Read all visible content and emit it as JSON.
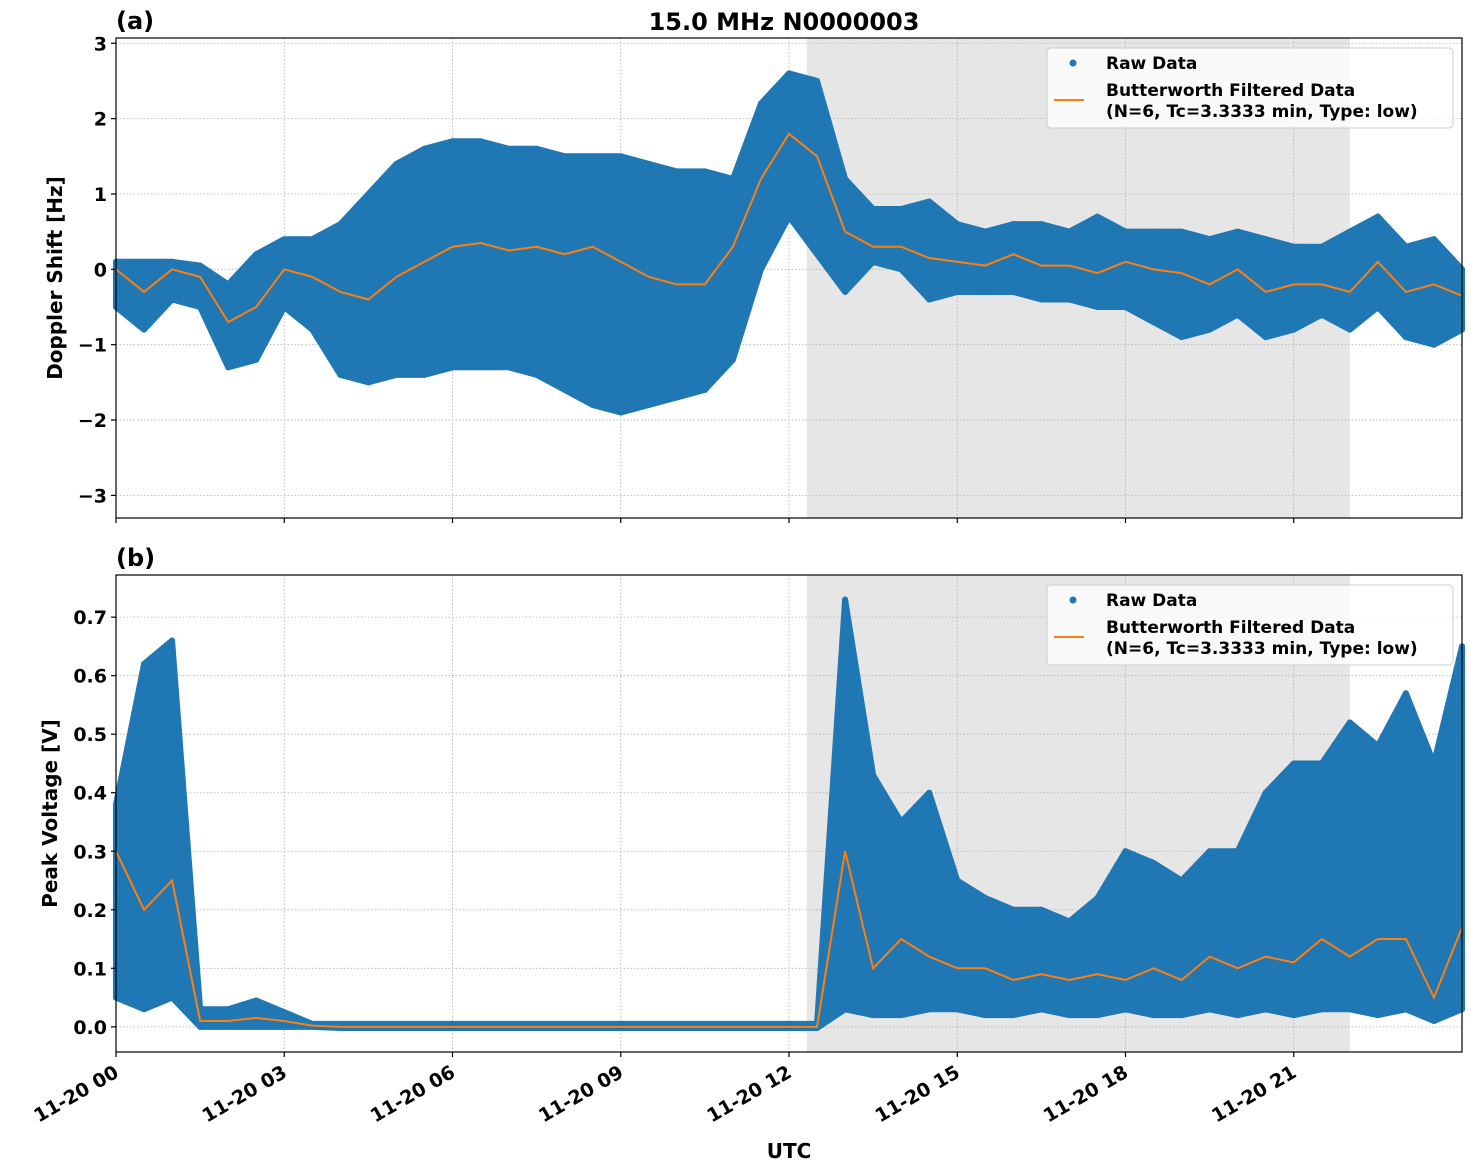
{
  "figure": {
    "title": "15.0 MHz N0000003",
    "xlabel": "UTC",
    "colors": {
      "raw": "#1f77b4",
      "filtered": "#ff7f0e",
      "shade": "#e6e6e6",
      "grid": "#b0b0b0"
    }
  },
  "chart_data": [
    {
      "panel_label": "(a)",
      "type": "scatter+line",
      "ylabel": "Doppler Shift [Hz]",
      "ylim": [
        -3.3,
        3.07
      ],
      "yticks": [
        -3,
        -2,
        -1,
        0,
        1,
        2,
        3
      ],
      "ytick_labels": [
        "−3",
        "−2",
        "−1",
        "0",
        "1",
        "2",
        "3"
      ],
      "xlim": [
        "11-20 00:00",
        "11-21 00:00"
      ],
      "xticks": [
        "11-20 00",
        "11-20 03",
        "11-20 06",
        "11-20 09",
        "11-20 12",
        "11-20 15",
        "11-20 18",
        "11-20 21"
      ],
      "xtick_labels_shown": false,
      "grid": true,
      "shaded_span": [
        "11-20 12:19",
        "11-20 22:00"
      ],
      "legend": {
        "placement": "top-right",
        "entries": [
          "Raw Data",
          "Butterworth Filtered Data",
          "(N=6, Tc=3.3333 min, Type: low)"
        ]
      },
      "x": [
        "11-20 00:00",
        "11-20 00:30",
        "11-20 01:00",
        "11-20 01:30",
        "11-20 02:00",
        "11-20 02:30",
        "11-20 03:00",
        "11-20 03:30",
        "11-20 04:00",
        "11-20 04:30",
        "11-20 05:00",
        "11-20 05:30",
        "11-20 06:00",
        "11-20 06:30",
        "11-20 07:00",
        "11-20 07:30",
        "11-20 08:00",
        "11-20 08:30",
        "11-20 09:00",
        "11-20 09:30",
        "11-20 10:00",
        "11-20 10:30",
        "11-20 11:00",
        "11-20 11:30",
        "11-20 12:00",
        "11-20 12:30",
        "11-20 13:00",
        "11-20 13:30",
        "11-20 14:00",
        "11-20 14:30",
        "11-20 15:00",
        "11-20 15:30",
        "11-20 16:00",
        "11-20 16:30",
        "11-20 17:00",
        "11-20 17:30",
        "11-20 18:00",
        "11-20 18:30",
        "11-20 19:00",
        "11-20 19:30",
        "11-20 20:00",
        "11-20 20:30",
        "11-20 21:00",
        "11-20 21:30",
        "11-20 22:00",
        "11-20 22:30",
        "11-20 23:00",
        "11-20 23:30",
        "11-21 00:00"
      ],
      "series": [
        {
          "name": "Butterworth Filtered Data",
          "kind": "line",
          "values": [
            0,
            -0.3,
            0,
            -0.1,
            -0.7,
            -0.5,
            0,
            -0.1,
            -0.3,
            -0.4,
            -0.1,
            0.1,
            0.3,
            0.35,
            0.25,
            0.3,
            0.2,
            0.3,
            0.1,
            -0.1,
            -0.2,
            -0.2,
            0.3,
            1.2,
            1.8,
            1.5,
            0.5,
            0.3,
            0.3,
            0.15,
            0.1,
            0.05,
            0.2,
            0.05,
            0.05,
            -0.05,
            0.1,
            0,
            -0.05,
            -0.2,
            0,
            -0.3,
            -0.2,
            -0.2,
            -0.3,
            0.1,
            -0.3,
            -0.2,
            -0.35
          ]
        },
        {
          "name": "Raw Data",
          "kind": "scatter-envelope",
          "low": [
            -0.5,
            -0.8,
            -0.4,
            -0.5,
            -1.3,
            -1.2,
            -0.5,
            -0.8,
            -1.4,
            -1.5,
            -1.4,
            -1.4,
            -1.3,
            -1.3,
            -1.3,
            -1.4,
            -1.6,
            -1.8,
            -1.9,
            -1.8,
            -1.7,
            -1.6,
            -1.2,
            0,
            0.7,
            0.2,
            -0.3,
            0.1,
            0,
            -0.4,
            -0.3,
            -0.3,
            -0.3,
            -0.4,
            -0.4,
            -0.5,
            -0.5,
            -0.7,
            -0.9,
            -0.8,
            -0.6,
            -0.9,
            -0.8,
            -0.6,
            -0.8,
            -0.5,
            -0.9,
            -1.0,
            -0.8
          ],
          "high": [
            0.1,
            0.1,
            0.1,
            0.05,
            -0.2,
            0.2,
            0.4,
            0.4,
            0.6,
            1.0,
            1.4,
            1.6,
            1.7,
            1.7,
            1.6,
            1.6,
            1.5,
            1.5,
            1.5,
            1.4,
            1.3,
            1.3,
            1.2,
            2.2,
            2.6,
            2.5,
            1.2,
            0.8,
            0.8,
            0.9,
            0.6,
            0.5,
            0.6,
            0.6,
            0.5,
            0.7,
            0.5,
            0.5,
            0.5,
            0.4,
            0.5,
            0.4,
            0.3,
            0.3,
            0.5,
            0.7,
            0.3,
            0.4,
            0
          ]
        }
      ]
    },
    {
      "panel_label": "(b)",
      "type": "scatter+line",
      "ylabel": "Peak Voltage [V]",
      "ylim": [
        -0.043,
        0.772
      ],
      "yticks": [
        0,
        0.1,
        0.2,
        0.3,
        0.4,
        0.5,
        0.6,
        0.7
      ],
      "ytick_labels": [
        "0.0",
        "0.1",
        "0.2",
        "0.3",
        "0.4",
        "0.5",
        "0.6",
        "0.7"
      ],
      "xlim": [
        "11-20 00:00",
        "11-21 00:00"
      ],
      "xticks": [
        "11-20 00",
        "11-20 03",
        "11-20 06",
        "11-20 09",
        "11-20 12",
        "11-20 15",
        "11-20 18",
        "11-20 21"
      ],
      "xtick_labels_shown": true,
      "grid": true,
      "shaded_span": [
        "11-20 12:19",
        "11-20 22:00"
      ],
      "legend": {
        "placement": "top-right",
        "entries": [
          "Raw Data",
          "Butterworth Filtered Data",
          "(N=6, Tc=3.3333 min, Type: low)"
        ]
      },
      "x": [
        "11-20 00:00",
        "11-20 00:30",
        "11-20 01:00",
        "11-20 01:30",
        "11-20 02:00",
        "11-20 02:30",
        "11-20 03:00",
        "11-20 03:30",
        "11-20 04:00",
        "11-20 04:30",
        "11-20 05:00",
        "11-20 05:30",
        "11-20 06:00",
        "11-20 06:30",
        "11-20 07:00",
        "11-20 07:30",
        "11-20 08:00",
        "11-20 08:30",
        "11-20 09:00",
        "11-20 09:30",
        "11-20 10:00",
        "11-20 10:30",
        "11-20 11:00",
        "11-20 11:30",
        "11-20 12:00",
        "11-20 12:30",
        "11-20 13:00",
        "11-20 13:30",
        "11-20 14:00",
        "11-20 14:30",
        "11-20 15:00",
        "11-20 15:30",
        "11-20 16:00",
        "11-20 16:30",
        "11-20 17:00",
        "11-20 17:30",
        "11-20 18:00",
        "11-20 18:30",
        "11-20 19:00",
        "11-20 19:30",
        "11-20 20:00",
        "11-20 20:30",
        "11-20 21:00",
        "11-20 21:30",
        "11-20 22:00",
        "11-20 22:30",
        "11-20 23:00",
        "11-20 23:30",
        "11-21 00:00"
      ],
      "series": [
        {
          "name": "Butterworth Filtered Data",
          "kind": "line",
          "values": [
            0.3,
            0.2,
            0.25,
            0.01,
            0.01,
            0.015,
            0.01,
            0.002,
            0,
            0,
            0,
            0,
            0,
            0,
            0,
            0,
            0,
            0,
            0,
            0,
            0,
            0,
            0,
            0,
            0,
            0,
            0.3,
            0.1,
            0.15,
            0.12,
            0.1,
            0.1,
            0.08,
            0.09,
            0.08,
            0.09,
            0.08,
            0.1,
            0.08,
            0.12,
            0.1,
            0.12,
            0.11,
            0.15,
            0.12,
            0.15,
            0.15,
            0.05,
            0.17
          ]
        },
        {
          "name": "Raw Data",
          "kind": "scatter-envelope",
          "low": [
            0.05,
            0.03,
            0.05,
            0,
            0,
            0,
            0,
            0,
            -0.002,
            -0.002,
            -0.002,
            -0.002,
            -0.002,
            -0.002,
            -0.002,
            -0.002,
            -0.002,
            -0.002,
            -0.002,
            -0.002,
            -0.002,
            -0.002,
            -0.002,
            -0.002,
            -0.002,
            -0.002,
            0.03,
            0.02,
            0.02,
            0.03,
            0.03,
            0.02,
            0.02,
            0.03,
            0.02,
            0.02,
            0.03,
            0.02,
            0.02,
            0.03,
            0.02,
            0.03,
            0.02,
            0.03,
            0.03,
            0.02,
            0.03,
            0.01,
            0.03
          ],
          "high": [
            0.38,
            0.62,
            0.66,
            0.03,
            0.03,
            0.045,
            0.025,
            0.005,
            0.005,
            0.005,
            0.005,
            0.005,
            0.005,
            0.005,
            0.005,
            0.005,
            0.005,
            0.005,
            0.005,
            0.005,
            0.005,
            0.005,
            0.005,
            0.005,
            0.005,
            0.005,
            0.73,
            0.43,
            0.35,
            0.4,
            0.25,
            0.22,
            0.2,
            0.2,
            0.18,
            0.22,
            0.3,
            0.28,
            0.25,
            0.3,
            0.3,
            0.4,
            0.45,
            0.45,
            0.52,
            0.48,
            0.57,
            0.45,
            0.65
          ]
        }
      ]
    }
  ]
}
